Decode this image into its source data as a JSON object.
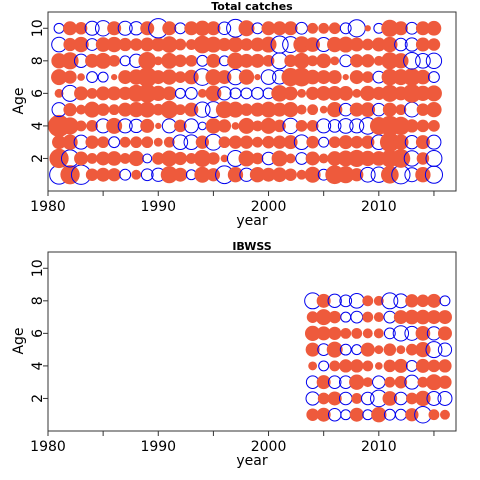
{
  "colors": {
    "positive": "#ee5a3c",
    "negative": "#0000ee"
  },
  "chart_data": [
    {
      "type": "scatter",
      "title": "Total catches",
      "xlabel": "year",
      "ylabel": "Age",
      "xlim": [
        1980,
        2017
      ],
      "ylim": [
        0,
        11
      ],
      "xticks": [
        "1980",
        "1990",
        "2000",
        "2010"
      ],
      "yticks": [
        "2",
        "4",
        "6",
        "8",
        "10"
      ],
      "ages": [
        1,
        2,
        3,
        4,
        5,
        6,
        7,
        8,
        9,
        10
      ],
      "x": [
        1981,
        1982,
        1983,
        1984,
        1985,
        1986,
        1987,
        1988,
        1989,
        1990,
        1991,
        1992,
        1993,
        1994,
        1995,
        1996,
        1997,
        1998,
        1999,
        2000,
        2001,
        2002,
        2003,
        2004,
        2005,
        2006,
        2007,
        2008,
        2009,
        2010,
        2011,
        2012,
        2013,
        2014,
        2015
      ],
      "residuals": [
        [
          -1.8,
          1.9,
          -1.9,
          0.8,
          1.0,
          0.9,
          -0.6,
          0.5,
          -0.7,
          -0.9,
          1.5,
          1.0,
          -0.5,
          1.3,
          0.9,
          -1.6,
          1.2,
          -0.9,
          1.2,
          1.0,
          1.1,
          0.8,
          0.5,
          1.3,
          -0.6,
          1.8,
          1.5,
          0.9,
          -1.1,
          -1.2,
          1.6,
          -1.7,
          -1.0,
          1.2,
          -1.5
        ],
        [
          1.9,
          -1.5,
          1.0,
          0.6,
          1.0,
          1.1,
          0.6,
          1.2,
          -0.4,
          0.8,
          1.3,
          0.9,
          0.6,
          1.5,
          0.8,
          0.3,
          -1.3,
          1.3,
          0.7,
          -0.8,
          1.3,
          0.5,
          -0.7,
          1.0,
          0.5,
          1.1,
          1.3,
          1.5,
          1.2,
          1.1,
          1.6,
          1.8,
          -1.2,
          0.8,
          -1.3
        ],
        [
          1.0,
          1.2,
          -1.0,
          0.9,
          0.7,
          -0.6,
          0.6,
          0.7,
          0.7,
          0.4,
          0.6,
          -1.1,
          -1.1,
          0.9,
          -1.3,
          0.7,
          0.9,
          0.9,
          0.6,
          0.8,
          0.9,
          1.0,
          -1.1,
          0.8,
          -0.5,
          0.7,
          1.0,
          0.8,
          0.9,
          -1.1,
          2.0,
          1.2,
          -0.9,
          1.0,
          -1.0
        ],
        [
          2.5,
          1.5,
          0.6,
          0.7,
          -1.0,
          1.3,
          -1.0,
          -0.9,
          1.0,
          0.2,
          -1.0,
          0.8,
          -1.0,
          -0.3,
          1.2,
          0.9,
          0.3,
          1.3,
          0.6,
          1.3,
          0.8,
          -1.2,
          0.7,
          0.7,
          -1.0,
          -0.8,
          -1.1,
          -1.0,
          -1.4,
          1.6,
          2.1,
          1.7,
          0.9,
          0.8,
          0.7
        ],
        [
          -1.0,
          0.9,
          0.5,
          1.3,
          0.8,
          0.6,
          1.0,
          1.2,
          1.3,
          0.7,
          1.6,
          0.6,
          1.0,
          -1.2,
          -1.3,
          1.5,
          1.3,
          0.8,
          1.0,
          1.3,
          1.0,
          1.2,
          0.5,
          0.6,
          0.3,
          1.2,
          -0.8,
          1.0,
          1.1,
          -0.8,
          1.0,
          0.6,
          -1.1,
          0.8,
          1.2
        ],
        [
          0.4,
          -1.3,
          1.0,
          0.6,
          1.0,
          1.0,
          0.9,
          1.5,
          1.8,
          1.2,
          1.0,
          -0.5,
          -0.7,
          0.4,
          1.3,
          -0.9,
          -0.6,
          -0.6,
          -0.7,
          -0.6,
          1.4,
          1.0,
          0.4,
          0.9,
          1.1,
          1.1,
          1.1,
          0.4,
          1.2,
          0.9,
          1.5,
          1.0,
          1.8,
          1.2,
          1.3
        ],
        [
          1.3,
          0.9,
          0.3,
          -0.6,
          -0.5,
          0.2,
          1.0,
          1.2,
          2.0,
          1.0,
          1.2,
          0.7,
          1.1,
          -1.4,
          1.3,
          1.0,
          -1.2,
          1.2,
          0.2,
          -1.1,
          -1.0,
          1.7,
          1.8,
          1.1,
          1.0,
          1.0,
          0.2,
          1.0,
          0.7,
          -0.7,
          1.4,
          1.3,
          1.6,
          1.1,
          -0.6
        ],
        [
          1.2,
          1.5,
          -0.9,
          1.0,
          1.3,
          0.7,
          -0.5,
          -0.9,
          1.6,
          0.4,
          1.3,
          0.8,
          0.7,
          -0.6,
          1.0,
          -0.5,
          1.4,
          1.0,
          1.0,
          0.7,
          -1.3,
          0.8,
          1.3,
          0.6,
          1.1,
          0.4,
          -0.7,
          0.9,
          0.9,
          0.5,
          1.5,
          1.2,
          -1.4,
          -1.1,
          -1.2
        ],
        [
          -1.1,
          0.9,
          1.2,
          -0.7,
          1.1,
          1.2,
          0.9,
          0.8,
          1.0,
          1.0,
          1.4,
          0.7,
          0.6,
          1.6,
          1.3,
          0.9,
          1.2,
          0.8,
          1.0,
          1.3,
          -1.5,
          -1.3,
          1.4,
          1.1,
          -1.0,
          1.2,
          1.3,
          1.0,
          0.7,
          1.0,
          1.2,
          -0.8,
          -0.9,
          1.0,
          0.8
        ],
        [
          -0.5,
          1.0,
          0.8,
          -1.0,
          -1.2,
          1.0,
          -1.0,
          -0.9,
          1.0,
          -1.9,
          1.0,
          -0.6,
          1.0,
          1.2,
          1.0,
          -0.8,
          -1.6,
          1.3,
          -0.6,
          1.0,
          1.0,
          1.0,
          -0.7,
          0.6,
          0.6,
          0.7,
          -0.6,
          -1.5,
          0.2,
          -0.5,
          1.5,
          1.0,
          -0.7,
          1.0,
          1.1
        ]
      ]
    },
    {
      "type": "scatter",
      "title": "IBWSS",
      "xlabel": "year",
      "ylabel": "Age",
      "xlim": [
        1980,
        2017
      ],
      "ylim": [
        0,
        11
      ],
      "xticks": [
        "1980",
        "1990",
        "2000",
        "2010"
      ],
      "yticks": [
        "2",
        "4",
        "6",
        "8",
        "10"
      ],
      "ages": [
        1,
        2,
        3,
        4,
        5,
        6,
        7,
        8
      ],
      "x": [
        2004,
        2005,
        2006,
        2007,
        2008,
        2009,
        2010,
        2011,
        2012,
        2013,
        2014,
        2015,
        2016
      ],
      "residuals": [
        [
          0.8,
          1.0,
          -0.8,
          -0.5,
          1.0,
          -0.5,
          1.2,
          -0.6,
          -0.6,
          0.9,
          -1.4,
          0.6,
          0.5
        ],
        [
          -0.9,
          0.7,
          1.0,
          -0.8,
          0.6,
          -0.8,
          -1.4,
          1.1,
          -0.8,
          0.7,
          1.2,
          -1.0,
          -1.0
        ],
        [
          -0.8,
          1.0,
          -0.8,
          -0.8,
          1.2,
          0.5,
          -0.8,
          0.6,
          0.8,
          -1.0,
          0.6,
          1.3,
          0.9
        ],
        [
          0.4,
          -0.5,
          0.6,
          0.9,
          0.9,
          0.6,
          0.3,
          0.8,
          1.0,
          -0.6,
          1.0,
          0.8,
          0.9
        ],
        [
          1.0,
          -0.7,
          1.3,
          -0.6,
          -0.5,
          1.0,
          0.4,
          0.8,
          0.4,
          0.7,
          1.2,
          -1.3,
          -0.9
        ],
        [
          1.2,
          1.0,
          0.9,
          0.6,
          0.6,
          0.5,
          0.5,
          -0.6,
          -1.2,
          -1.0,
          1.1,
          -0.9,
          1.0
        ],
        [
          0.7,
          1.3,
          0.8,
          -0.5,
          -0.7,
          0.6,
          0.5,
          -0.7,
          1.0,
          1.1,
          1.1,
          1.0,
          1.0
        ],
        [
          -1.3,
          1.0,
          -0.9,
          -0.7,
          -1.1,
          0.6,
          0.5,
          -1.3,
          -1.0,
          0.9,
          0.8,
          1.0,
          -0.5
        ]
      ]
    }
  ]
}
